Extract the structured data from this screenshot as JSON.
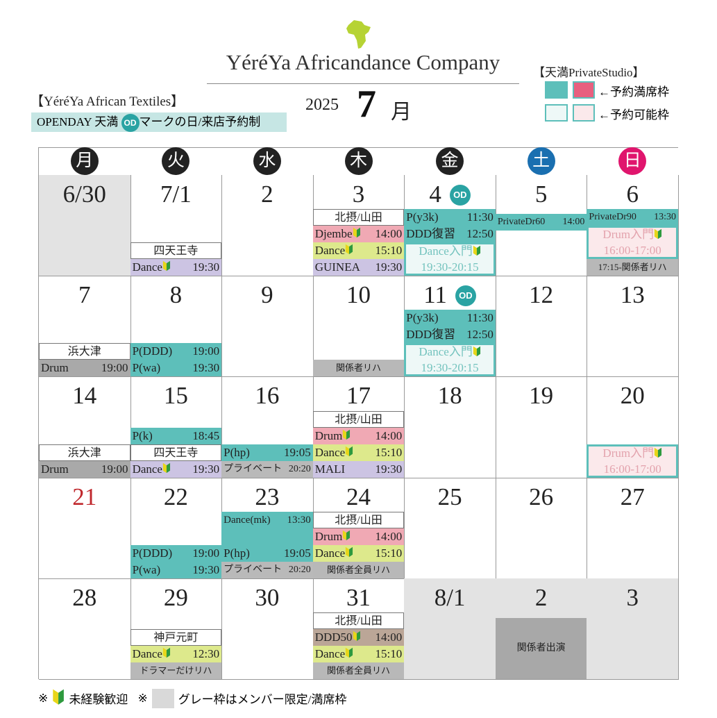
{
  "header": {
    "title": "YéréYa Africandance Company",
    "year": "2025",
    "month_number": "7",
    "month_unit": "月",
    "shop_title": "【YéréYa African Textiles】",
    "openday_prefix": "OPENDAY 天満",
    "openday_suffix": "マークの日/来店予約制",
    "od_label": "OD",
    "legend_title": "【天満PrivateStudio】",
    "legend_full": "←予約満席枠",
    "legend_open": "←予約可能枠"
  },
  "calendar": {
    "weekdays": [
      "月",
      "火",
      "水",
      "木",
      "金",
      "土",
      "日"
    ],
    "cells": [
      {
        "date": "6/30",
        "gray": true,
        "events": []
      },
      {
        "date": "7/1",
        "events": [
          {
            "style": "loc",
            "label": "四天王寺"
          },
          {
            "style": "purple",
            "label": "Dance",
            "beginner": true,
            "time": "19:30"
          }
        ]
      },
      {
        "date": "2",
        "events": []
      },
      {
        "date": "3",
        "events": [
          {
            "style": "loc",
            "label": "北摂/山田"
          },
          {
            "style": "pink",
            "label": "Djembe",
            "beginner": true,
            "time": "14:00"
          },
          {
            "style": "yellow",
            "label": "Dance",
            "beginner": true,
            "time": "15:10"
          },
          {
            "style": "purple",
            "label": "GUINEA",
            "time": "19:30"
          }
        ]
      },
      {
        "date": "4",
        "od": true,
        "events": [
          {
            "style": "teal",
            "label": "P(y3k)",
            "time": "11:30"
          },
          {
            "style": "teal",
            "label": "DDD復習",
            "time": "12:50"
          },
          {
            "style": "open-teal",
            "label": "Dance入門",
            "beginner": true,
            "time": "19:30-20:15"
          }
        ]
      },
      {
        "date": "5",
        "events": [
          {
            "style": "teal-small",
            "label": "PrivateDr60",
            "time": "14:00"
          }
        ]
      },
      {
        "date": "6",
        "events": [
          {
            "style": "teal-small",
            "label": "PrivateDr90",
            "time": "13:30"
          },
          {
            "style": "open-pink",
            "label": "Drum入門",
            "beginner": true,
            "time": "16:00-17:00"
          },
          {
            "style": "gray-label",
            "label": "17:15-関係者リハ"
          }
        ]
      },
      {
        "date": "7",
        "events": [
          {
            "style": "loc",
            "label": "浜大津"
          },
          {
            "style": "gray",
            "label": "Drum",
            "time": "19:00"
          }
        ]
      },
      {
        "date": "8",
        "events": [
          {
            "style": "teal",
            "label": "P(DDD)",
            "time": "19:00"
          },
          {
            "style": "teal",
            "label": "P(wa)",
            "time": "19:30"
          }
        ]
      },
      {
        "date": "9",
        "events": []
      },
      {
        "date": "10",
        "events": [
          {
            "style": "gray-label",
            "label": "関係者リハ"
          }
        ]
      },
      {
        "date": "11",
        "od": true,
        "events": [
          {
            "style": "teal",
            "label": "P(y3k)",
            "time": "11:30"
          },
          {
            "style": "teal",
            "label": "DDD復習",
            "time": "12:50"
          },
          {
            "style": "open-teal",
            "label": "Dance入門",
            "beginner": true,
            "time": "19:30-20:15"
          }
        ]
      },
      {
        "date": "12",
        "events": []
      },
      {
        "date": "13",
        "events": []
      },
      {
        "date": "14",
        "events": [
          {
            "style": "loc",
            "label": "浜大津"
          },
          {
            "style": "gray",
            "label": "Drum",
            "time": "19:00"
          }
        ]
      },
      {
        "date": "15",
        "events": [
          {
            "style": "teal",
            "label": "P(k)",
            "time": "18:45"
          },
          {
            "style": "loc",
            "label": "四天王寺"
          },
          {
            "style": "purple",
            "label": "Dance",
            "beginner": true,
            "time": "19:30"
          }
        ]
      },
      {
        "date": "16",
        "events": [
          {
            "style": "teal",
            "label": "P(hp)",
            "time": "19:05"
          },
          {
            "style": "gray-small",
            "label": "プライベート",
            "time": "20:20"
          }
        ]
      },
      {
        "date": "17",
        "events": [
          {
            "style": "loc",
            "label": "北摂/山田"
          },
          {
            "style": "pink",
            "label": "Drum",
            "beginner": true,
            "time": "14:00"
          },
          {
            "style": "yellow",
            "label": "Dance",
            "beginner": true,
            "time": "15:10"
          },
          {
            "style": "purple",
            "label": "MALI",
            "time": "19:30"
          }
        ]
      },
      {
        "date": "18",
        "events": []
      },
      {
        "date": "19",
        "events": []
      },
      {
        "date": "20",
        "events": [
          {
            "style": "open-pink",
            "label": "Drum入門",
            "beginner": true,
            "time": "16:00-17:00"
          }
        ]
      },
      {
        "date": "21",
        "red": true,
        "events": []
      },
      {
        "date": "22",
        "events": [
          {
            "style": "teal",
            "label": "P(DDD)",
            "time": "19:00"
          },
          {
            "style": "teal",
            "label": "P(wa)",
            "time": "19:30"
          }
        ]
      },
      {
        "date": "23",
        "events": [
          {
            "style": "teal-tall",
            "label": "Dance(mk)",
            "time": "13:30"
          },
          {
            "style": "teal",
            "label": "P(hp)",
            "time": "19:05"
          },
          {
            "style": "gray-small",
            "label": "プライベート",
            "time": "20:20"
          }
        ]
      },
      {
        "date": "24",
        "events": [
          {
            "style": "loc",
            "label": "北摂/山田"
          },
          {
            "style": "pink",
            "label": "Drum",
            "beginner": true,
            "time": "14:00"
          },
          {
            "style": "yellow",
            "label": "Dance",
            "beginner": true,
            "time": "15:10"
          },
          {
            "style": "gray-label",
            "label": "関係者全員リハ"
          }
        ]
      },
      {
        "date": "25",
        "events": []
      },
      {
        "date": "26",
        "events": []
      },
      {
        "date": "27",
        "events": []
      },
      {
        "date": "28",
        "events": []
      },
      {
        "date": "29",
        "events": [
          {
            "style": "loc",
            "label": "神戸元町"
          },
          {
            "style": "yellow",
            "label": "Dance",
            "beginner": true,
            "time": "12:30"
          },
          {
            "style": "gray-label",
            "label": "ドラマーだけリハ"
          }
        ]
      },
      {
        "date": "30",
        "events": []
      },
      {
        "date": "31",
        "events": [
          {
            "style": "loc",
            "label": "北摂/山田"
          },
          {
            "style": "brown",
            "label": "DDD50",
            "beginner": true,
            "time": "14:00"
          },
          {
            "style": "yellow",
            "label": "Dance",
            "beginner": true,
            "time": "15:10"
          },
          {
            "style": "gray-label",
            "label": "関係者全員リハ"
          }
        ]
      },
      {
        "date": "8/1",
        "gray": true,
        "events": []
      },
      {
        "date": "2",
        "gray": true,
        "events": [
          {
            "style": "block",
            "label": "関係者出演"
          }
        ]
      },
      {
        "date": "3",
        "gray": true,
        "events": []
      }
    ]
  },
  "footer": {
    "mark1": "※",
    "note1": "未経験歓迎",
    "mark2": "※",
    "note2": "グレー枠はメンバー限定/満席枠"
  }
}
